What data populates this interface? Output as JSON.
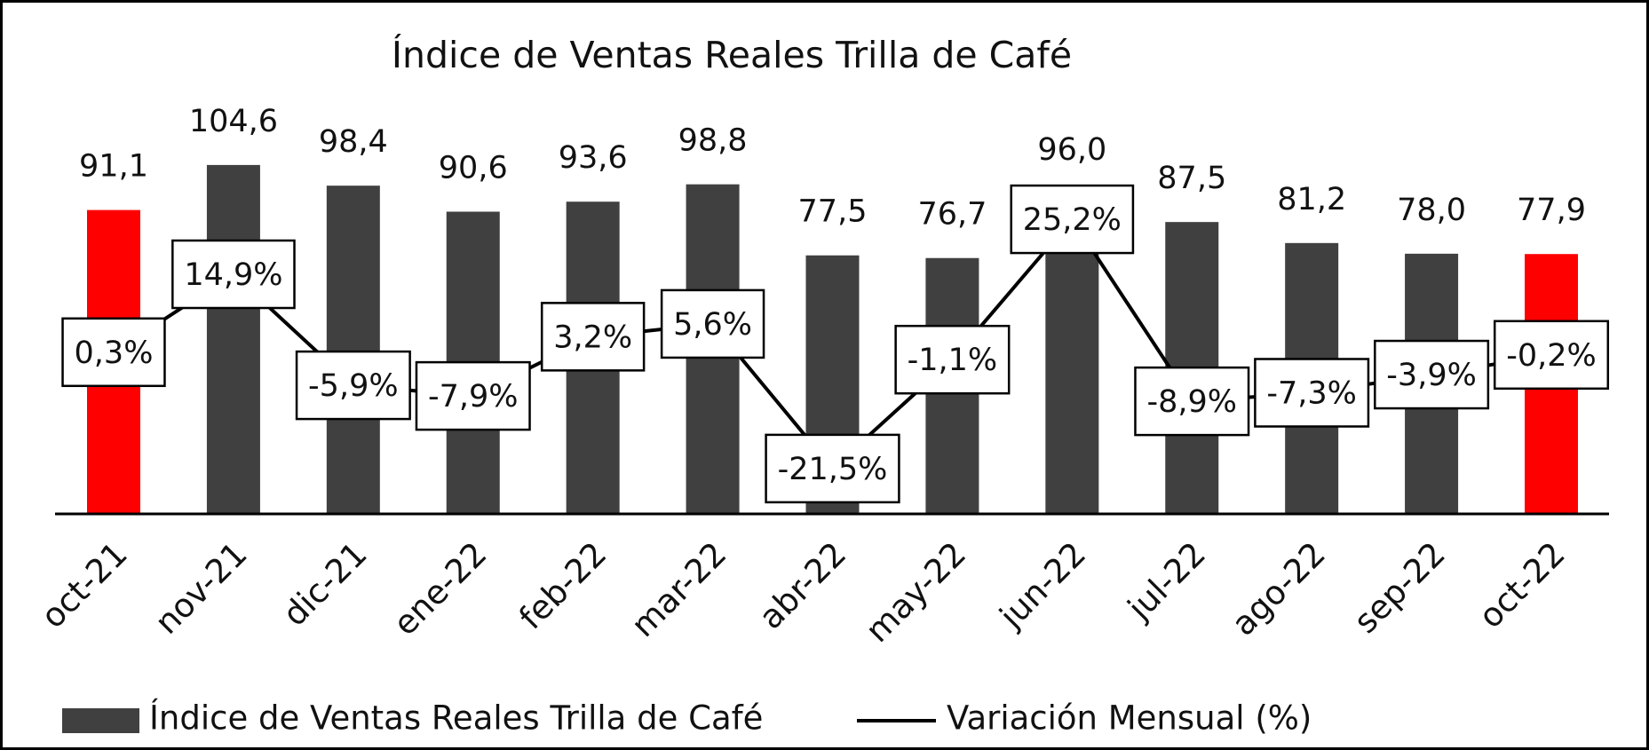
{
  "chart_data": {
    "type": "bar",
    "title": "Índice de Ventas Reales Trilla de Café",
    "categories": [
      "oct-21",
      "nov-21",
      "dic-21",
      "ene-22",
      "feb-22",
      "mar-22",
      "abr-22",
      "may-22",
      "jun-22",
      "jul-22",
      "ago-22",
      "sep-22",
      "oct-22"
    ],
    "series": [
      {
        "name": "Índice de Ventas Reales Trilla de Café",
        "type": "bar",
        "color": "#404040",
        "colors": [
          "#ff0000",
          "#404040",
          "#404040",
          "#404040",
          "#404040",
          "#404040",
          "#404040",
          "#404040",
          "#404040",
          "#404040",
          "#404040",
          "#404040",
          "#ff0000"
        ],
        "values": [
          91.1,
          104.6,
          98.4,
          90.6,
          93.6,
          98.8,
          77.5,
          76.7,
          96.0,
          87.5,
          81.2,
          78.0,
          77.9
        ],
        "value_labels": [
          "91,1",
          "104,6",
          "98,4",
          "90,6",
          "93,6",
          "98,8",
          "77,5",
          "76,7",
          "96,0",
          "87,5",
          "81,2",
          "78,0",
          "77,9"
        ]
      },
      {
        "name": "Variación Mensual (%)",
        "type": "line",
        "color": "#000000",
        "axis": "y2",
        "values": [
          0.3,
          14.9,
          -5.9,
          -7.9,
          3.2,
          5.6,
          -21.5,
          -1.1,
          25.2,
          -8.9,
          -7.3,
          -3.9,
          -0.2
        ],
        "value_labels": [
          "0,3%",
          "14,9%",
          "-5,9%",
          "-7,9%",
          "3,2%",
          "5,6%",
          "-21,5%",
          "-1,1%",
          "25,2%",
          "-8,9%",
          "-7,3%",
          "-3,9%",
          "-0,2%"
        ]
      }
    ],
    "ylim": [
      0,
      120
    ],
    "y2lim": [
      -30,
      45
    ],
    "grid": false,
    "legend": "bottom"
  }
}
